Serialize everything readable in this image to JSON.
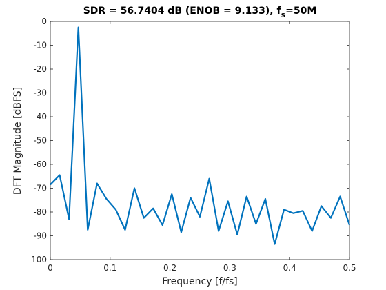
{
  "chart_data": {
    "type": "line",
    "title_main": "SDR = 56.7404 dB (ENOB = 9.133), f",
    "title_sub": "s",
    "title_tail": "=50M",
    "xlabel": "Frequency [f/fs]",
    "ylabel": "DFT Magnitude [dBFS]",
    "xlim": [
      0,
      0.5
    ],
    "ylim": [
      -100,
      0
    ],
    "x_ticks": [
      "0",
      "0.1",
      "0.2",
      "0.3",
      "0.4",
      "0.5"
    ],
    "y_ticks": [
      "0",
      "-10",
      "-20",
      "-30",
      "-40",
      "-50",
      "-60",
      "-70",
      "-80",
      "-90",
      "-100"
    ],
    "grid": false,
    "line_color": "#0072BD",
    "series": [
      {
        "x": [
          0,
          0.0156,
          0.0313,
          0.0469,
          0.0625,
          0.0781,
          0.0938,
          0.1094,
          0.125,
          0.1406,
          0.1563,
          0.1719,
          0.1875,
          0.2031,
          0.2188,
          0.2344,
          0.25,
          0.2656,
          0.2813,
          0.2969,
          0.3125,
          0.3281,
          0.3438,
          0.3594,
          0.375,
          0.3906,
          0.4063,
          0.4219,
          0.4375,
          0.4531,
          0.4688,
          0.4844,
          0.5
        ],
        "values": [
          -68.5,
          -64.5,
          -83,
          -2.5,
          -87.5,
          -68,
          -74.5,
          -79,
          -87.5,
          -70,
          -82.5,
          -78.5,
          -85.5,
          -72.5,
          -88.5,
          -74,
          -82,
          -66,
          -88,
          -75.5,
          -89.5,
          -73.5,
          -85,
          -74.5,
          -93.5,
          -79,
          -80.5,
          -79.5,
          -88,
          -77.5,
          -82.5,
          -73.5,
          -85.5
        ]
      }
    ]
  }
}
